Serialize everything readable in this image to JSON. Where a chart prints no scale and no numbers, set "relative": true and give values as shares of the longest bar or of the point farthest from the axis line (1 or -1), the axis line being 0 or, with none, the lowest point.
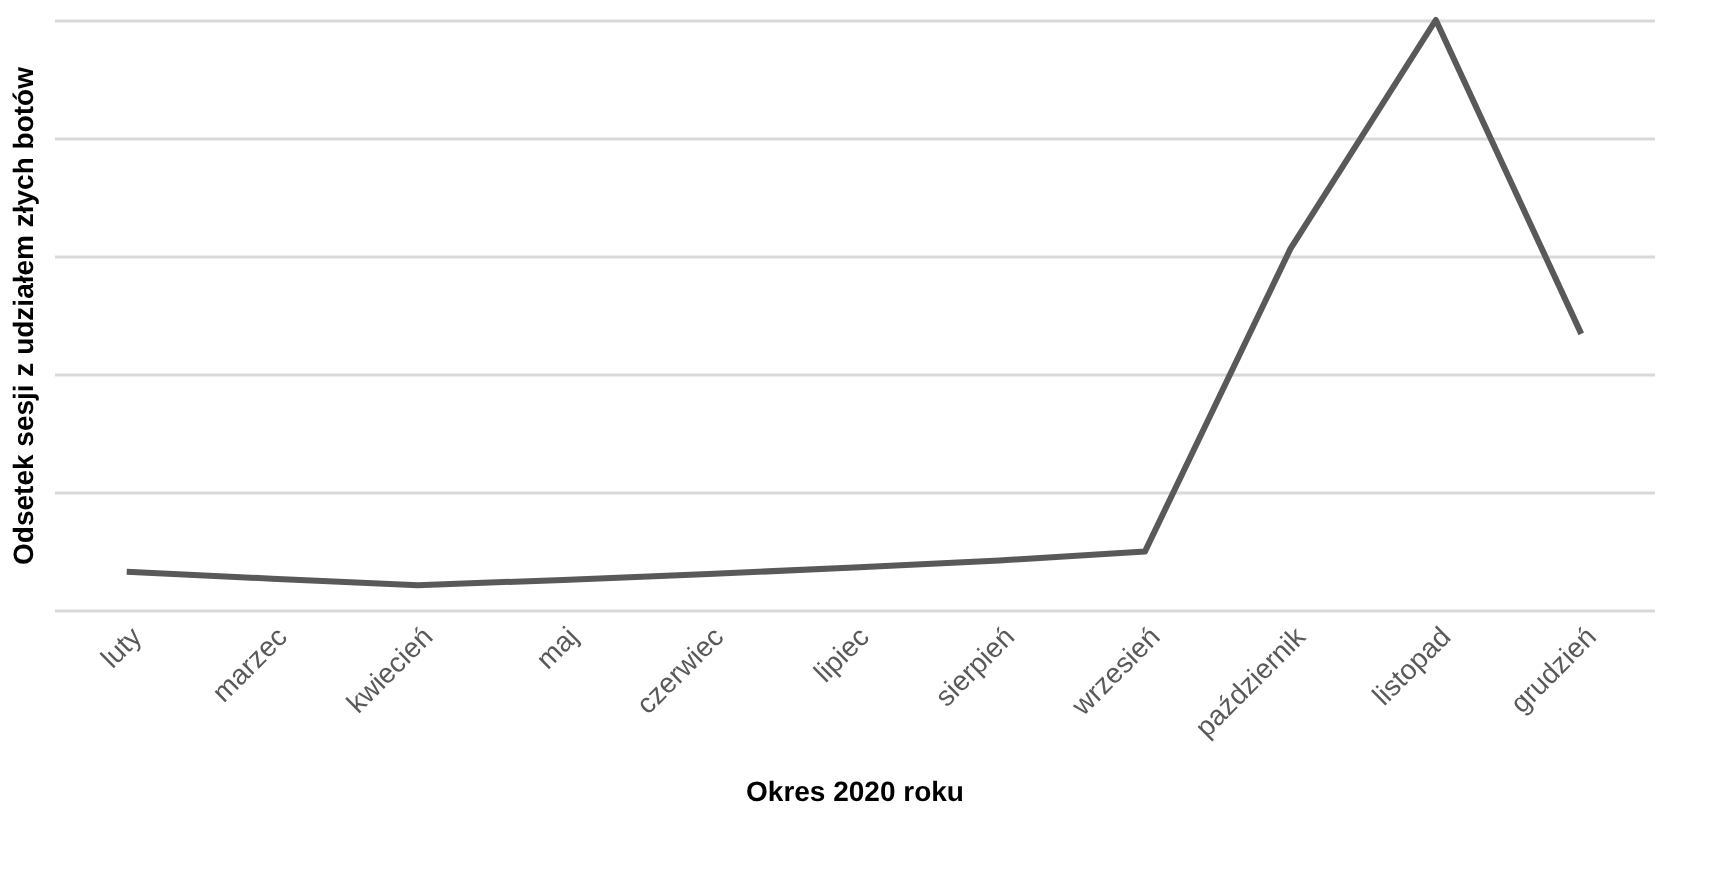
{
  "chart_data": {
    "type": "line",
    "xlabel": "Okres 2020 roku",
    "ylabel": "Odsetek sesji z udziałem złych botów",
    "categories": [
      "luty",
      "marzec",
      "kwiecień",
      "maj",
      "czerwiec",
      "lipiec",
      "sierpień",
      "wrzesień",
      "październik",
      "listopad",
      "grudzień"
    ],
    "series": [
      {
        "color": "#595959",
        "values": [
          0.065,
          0.053,
          0.042,
          0.051,
          0.061,
          0.072,
          0.084,
          0.099,
          0.612,
          1,
          0.468
        ]
      }
    ],
    "relative": true,
    "grid": "y",
    "marker": "none"
  }
}
